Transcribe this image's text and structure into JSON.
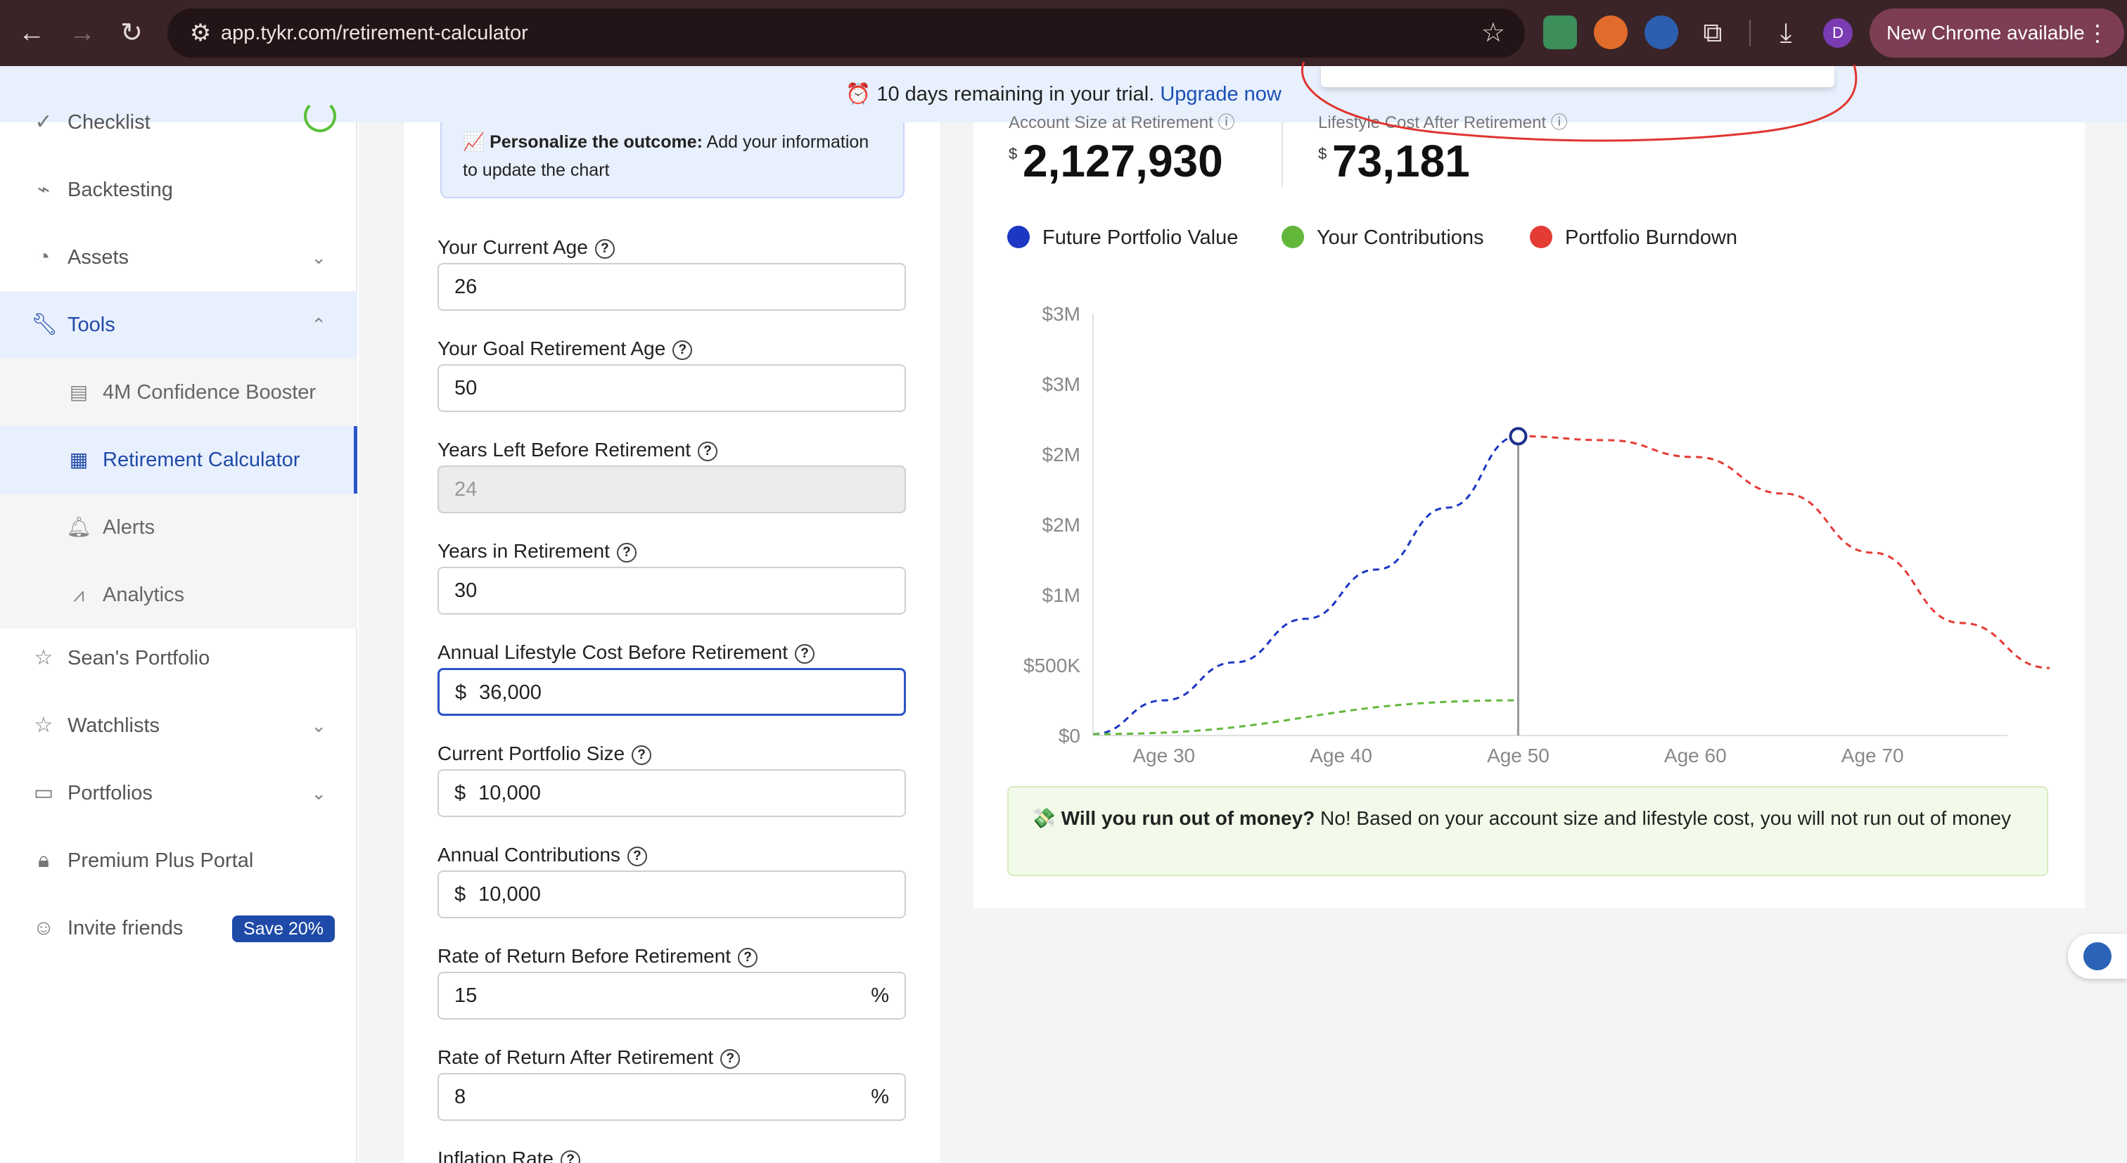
{
  "browser": {
    "url": "app.tykr.com/retirement-calculator",
    "new_chrome": "New Chrome available",
    "profile_initial": "D",
    "icons": [
      "back-arrow-icon",
      "forward-arrow-icon",
      "reload-icon",
      "site-settings-icon",
      "bookmark-star-icon",
      "extensions-puzzle-icon",
      "downloads-icon",
      "kebab-menu-icon"
    ]
  },
  "banner": {
    "emoji": "⏰",
    "text": "10 days remaining in your trial.",
    "link": "Upgrade now"
  },
  "sidebar": {
    "items": [
      {
        "label": "Checklist",
        "icon": "checklist-icon"
      },
      {
        "label": "Backtesting",
        "icon": "chart-line-icon"
      },
      {
        "label": "Assets",
        "icon": "pie-chart-icon"
      },
      {
        "label": "Tools",
        "icon": "wrench-icon"
      },
      {
        "label": "4M Confidence Booster",
        "icon": "document-check-icon"
      },
      {
        "label": "Retirement Calculator",
        "icon": "calculator-icon"
      },
      {
        "label": "Alerts",
        "icon": "bell-icon"
      },
      {
        "label": "Analytics",
        "icon": "analytics-icon"
      },
      {
        "label": "Sean's Portfolio",
        "icon": "star-icon"
      },
      {
        "label": "Watchlists",
        "icon": "star-icon"
      },
      {
        "label": "Portfolios",
        "icon": "monitor-chart-icon"
      },
      {
        "label": "Premium Plus Portal",
        "icon": "lock-icon"
      },
      {
        "label": "Invite friends",
        "icon": "invite-user-icon"
      }
    ],
    "invite_badge": "Save 20%"
  },
  "form": {
    "personalize_bold": "Personalize the outcome:",
    "personalize_text": "Add your information to update the chart",
    "fields": [
      {
        "label": "Your Current Age",
        "value": "26"
      },
      {
        "label": "Your Goal Retirement Age",
        "value": "50"
      },
      {
        "label": "Years Left Before Retirement",
        "value": "24"
      },
      {
        "label": "Years in Retirement",
        "value": "30"
      },
      {
        "label": "Annual Lifestyle Cost Before Retirement",
        "prefix": "$",
        "value": "36,000"
      },
      {
        "label": "Current Portfolio Size",
        "prefix": "$",
        "value": "10,000"
      },
      {
        "label": "Annual Contributions",
        "prefix": "$",
        "value": "10,000"
      },
      {
        "label": "Rate of Return Before Retirement",
        "value": "15",
        "suffix": "%"
      },
      {
        "label": "Rate of Return After Retirement",
        "value": "8",
        "suffix": "%"
      },
      {
        "label": "Inflation Rate"
      }
    ]
  },
  "stats": {
    "account_label": "Account Size at Retirement",
    "account_currency": "$",
    "account_value": "2,127,930",
    "lifestyle_label": "Lifestyle Cost After Retirement",
    "lifestyle_currency": "$",
    "lifestyle_value": "73,181"
  },
  "chart_data": {
    "type": "line",
    "ylabels": [
      "$3M",
      "$3M",
      "$2M",
      "$2M",
      "$1M",
      "$500K",
      "$0"
    ],
    "xlabels": [
      "Age 30",
      "Age 40",
      "Age 50",
      "Age 60",
      "Age 70"
    ],
    "xlim": [
      26,
      80
    ],
    "ylim": [
      0,
      3000000
    ],
    "retirement_age": 50,
    "series": [
      {
        "name": "Future Portfolio Value",
        "color": "#1b37c4",
        "x": [
          26,
          30,
          34,
          38,
          42,
          46,
          50
        ],
        "y": [
          10000,
          250000,
          520000,
          830000,
          1180000,
          1620000,
          2127930
        ]
      },
      {
        "name": "Your Contributions",
        "color": "#62b73b",
        "x": [
          26,
          50
        ],
        "y": [
          10000,
          250000
        ]
      },
      {
        "name": "Portfolio Burndown",
        "color": "#e53b35",
        "x": [
          50,
          55,
          60,
          65,
          70,
          75,
          80
        ],
        "y": [
          2127930,
          2100000,
          1980000,
          1720000,
          1300000,
          800000,
          480000
        ]
      }
    ]
  },
  "callout": {
    "emoji": "💸",
    "bold": "Will you run out of money?",
    "text": "No! Based on your account size and lifestyle cost, you will not run out of money"
  }
}
